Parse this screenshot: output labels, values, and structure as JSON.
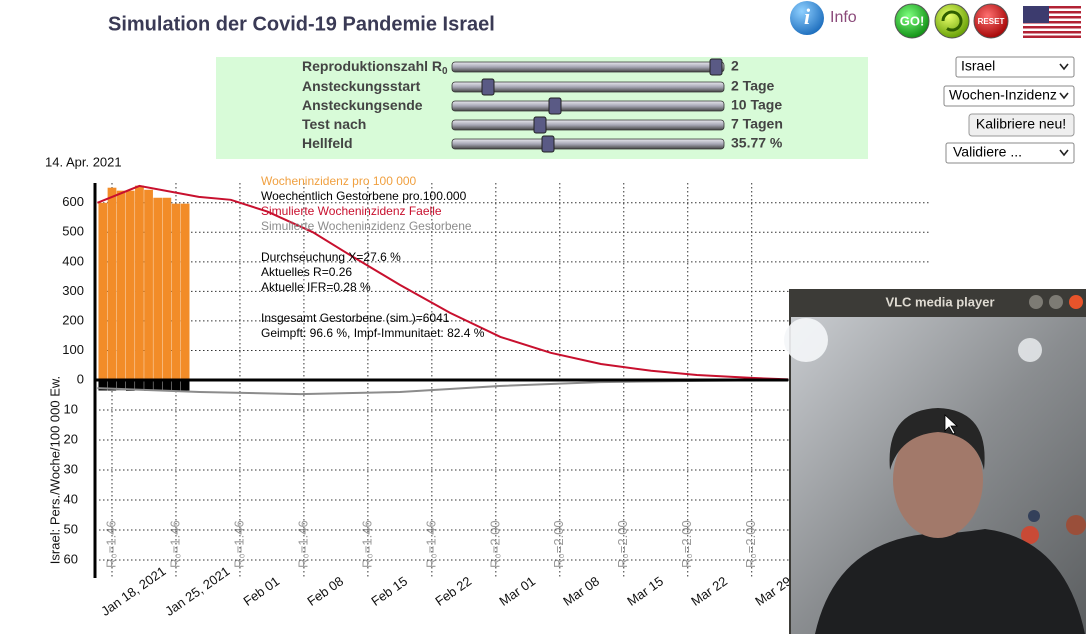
{
  "header": {
    "title": "Simulation der Covid-19 Pandemie Israel",
    "info": "Info",
    "go": "GO!",
    "reset": "RESET"
  },
  "controls": {
    "sliders": [
      {
        "label": "Reproduktionszahl R",
        "subscript": "0",
        "value": "2"
      },
      {
        "label": "Ansteckungsstart",
        "value": "2 Tage"
      },
      {
        "label": "Ansteckungsende",
        "value": "10 Tage"
      },
      {
        "label": "Test nach",
        "value": "7 Tagen"
      },
      {
        "label": "Hellfeld",
        "value": "35.77 %"
      }
    ]
  },
  "side": {
    "region": "Israel",
    "mode": "Wochen-Inzidenz",
    "calibrate": "Kalibriere neu!",
    "validate": "Validiere ..."
  },
  "date": "14. Apr. 2021",
  "chart_data": {
    "type": "combo",
    "ylabel": "Israel: Pers./Woche/100 000 Ew.",
    "xlim": [
      -1.86,
      89.4
    ],
    "xticks": [
      {
        "value": 0,
        "label": "Jan 18, 2021"
      },
      {
        "value": 7,
        "label": "Jan 25, 2021"
      },
      {
        "value": 14,
        "label": "Feb 01"
      },
      {
        "value": 21,
        "label": "Feb 08"
      },
      {
        "value": 28,
        "label": "Feb 15"
      },
      {
        "value": 35,
        "label": "Feb 22"
      },
      {
        "value": 42,
        "label": "Mar 01"
      },
      {
        "value": 49,
        "label": "Mar 08"
      },
      {
        "value": 56,
        "label": "Mar 15"
      },
      {
        "value": 63,
        "label": "Mar 22"
      },
      {
        "value": 70,
        "label": "Mar 29"
      }
    ],
    "r0_labels": [
      "R₀=1.46",
      "R₀=1.46",
      "R₀=1.46",
      "R₀=1.46",
      "R₀=1.46",
      "R₀=1.46",
      "R₀=2.00",
      "R₀=2.00",
      "R₀=2.00",
      "R₀=2.00",
      "R₀=2.00"
    ],
    "ylim": [
      0,
      650
    ],
    "yticks": [
      0,
      100,
      200,
      300,
      400,
      500,
      600
    ],
    "y2lim": [
      0,
      65
    ],
    "y2ticks": [
      10,
      20,
      30,
      40,
      50,
      60
    ],
    "grid": true,
    "series": [
      {
        "name": "Wocheninzidenz pro 100 000",
        "type": "bar",
        "color": "#f28c28",
        "x": [
          -1,
          0,
          1,
          2,
          3,
          4,
          5,
          6,
          7,
          8
        ],
        "values": [
          600,
          651,
          641,
          641,
          658,
          644,
          617,
          617,
          597,
          597
        ]
      },
      {
        "name": "Woechentlich Gestorbene pro.100.000",
        "type": "bar",
        "color": "#000000",
        "axis": "y2",
        "x": [
          -1,
          0,
          1,
          2,
          3,
          4,
          5,
          6,
          7,
          8
        ],
        "values": [
          3.5,
          3.5,
          3.4,
          3.6,
          3.5,
          3.6,
          3.4,
          3.5,
          3.6,
          3.5
        ]
      },
      {
        "name": "Simulierte Wocheninzidenz Faelle",
        "type": "line",
        "color": "#c8102e",
        "x": [
          -1.6,
          3,
          9.5,
          13,
          17,
          22,
          26,
          31.5,
          37,
          42.5,
          48,
          53.5,
          59,
          64,
          70,
          74
        ],
        "values": [
          600,
          657,
          620,
          610,
          570,
          500,
          424,
          322,
          227,
          146,
          92,
          54,
          31,
          17,
          7,
          2
        ]
      },
      {
        "name": "Simulierte Wocheninzidenz Gestorbene",
        "type": "line",
        "color": "#8c8c8c",
        "axis": "y2",
        "x": [
          -1.6,
          9.6,
          20.6,
          31.5,
          42.4,
          53.4,
          64.3,
          74.2
        ],
        "values": [
          2.7,
          4,
          4.7,
          4,
          2,
          0.7,
          0.3,
          0
        ]
      }
    ],
    "annotations": [
      "Durchseuchung X=27.6 %",
      "Aktuelles R=0.26",
      "Aktuelle IFR=0.28 %",
      "Insgesamt Gestorbene (sim.)=6041",
      "Geimpft: 96.6 %, Impf-Immunitaet: 82.4 %"
    ]
  },
  "vlc": {
    "title": "VLC media player"
  }
}
